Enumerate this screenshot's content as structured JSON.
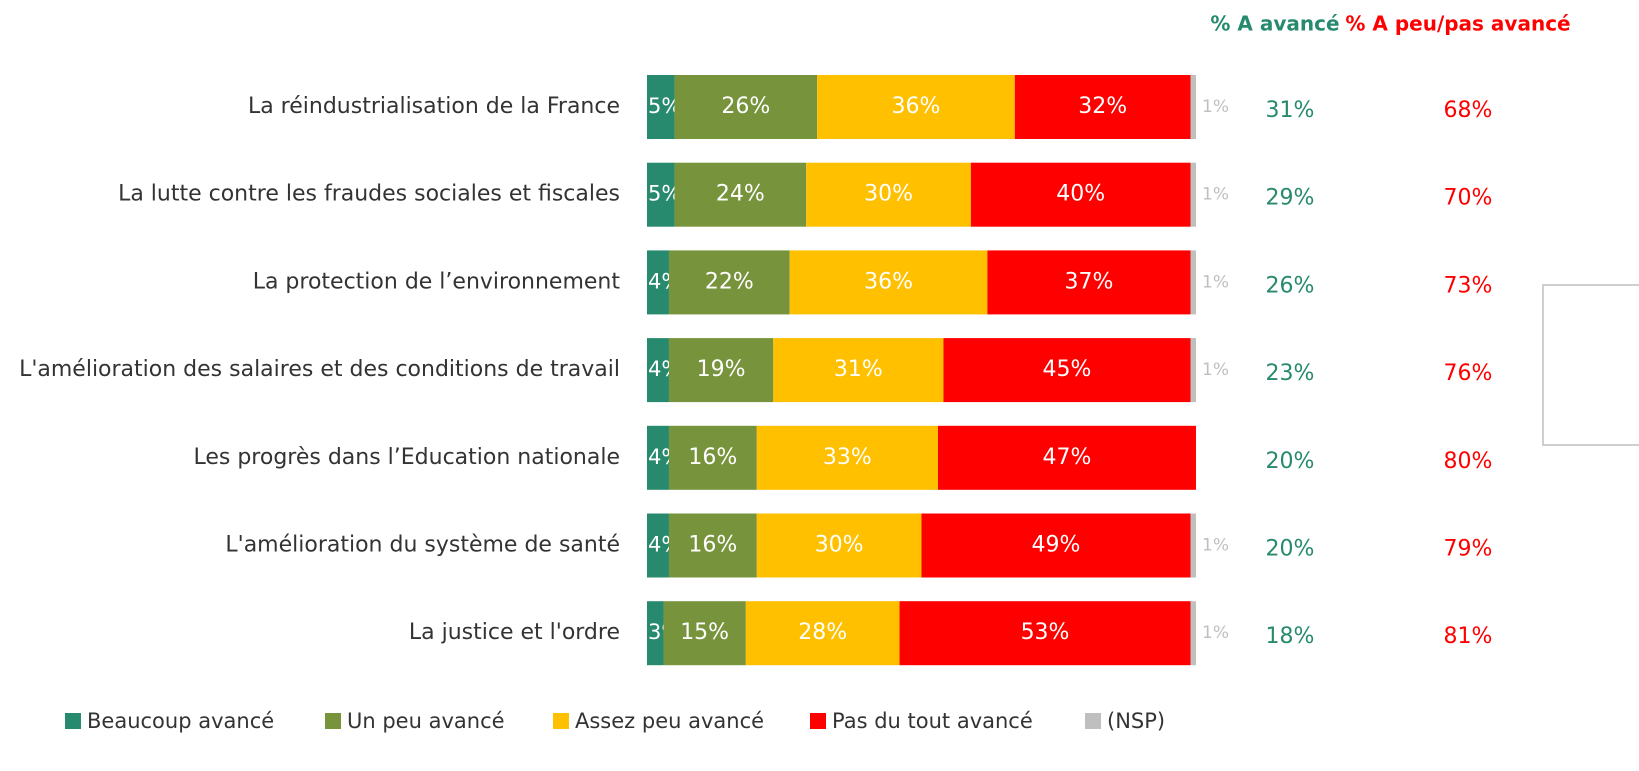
{
  "chart_data": {
    "type": "stacked-bar-horizontal",
    "categories": [
      "La réindustrialisation de la France",
      "La lutte contre les fraudes sociales et fiscales",
      "La protection de l’environnement",
      "L'amélioration des salaires et des conditions de travail",
      "Les progrès dans l’Education nationale",
      "L'amélioration du système de santé",
      "La justice et l'ordre"
    ],
    "xlim": [
      0,
      100
    ],
    "series": [
      {
        "name": "Beaucoup avancé",
        "color": "#278a6e",
        "label_color": "#ffffff",
        "values": [
          5,
          5,
          4,
          4,
          4,
          4,
          3
        ],
        "value_labels": [
          "5%",
          "5%",
          "4%",
          "4%",
          "4%",
          "4%",
          "3%"
        ]
      },
      {
        "name": "Un peu avancé",
        "color": "#77933c",
        "label_color": "#ffffff",
        "values": [
          26,
          24,
          22,
          19,
          16,
          16,
          15
        ],
        "value_labels": [
          "26%",
          "24%",
          "22%",
          "19%",
          "16%",
          "16%",
          "15%"
        ]
      },
      {
        "name": "Assez peu avancé",
        "color": "#ffc000",
        "label_color": "#ffffff",
        "values": [
          36,
          30,
          36,
          31,
          33,
          30,
          28
        ],
        "value_labels": [
          "36%",
          "30%",
          "36%",
          "31%",
          "33%",
          "30%",
          "28%"
        ]
      },
      {
        "name": "Pas du tout avancé",
        "color": "#ff0000",
        "label_color": "#ffffff",
        "values": [
          32,
          40,
          37,
          45,
          47,
          49,
          53
        ],
        "value_labels": [
          "32%",
          "40%",
          "37%",
          "45%",
          "47%",
          "49%",
          "53%"
        ]
      },
      {
        "name": "(NSP)",
        "color": "#bfbfbf",
        "label_color": "#bfbfbf",
        "values": [
          1,
          1,
          1,
          1,
          null,
          1,
          1
        ],
        "value_labels": [
          "1%",
          "1%",
          "1%",
          "1%",
          null,
          "1%",
          "1%"
        ]
      }
    ],
    "summary_columns": [
      {
        "name": "% A avancé",
        "color": "#278a6e",
        "values": [
          31,
          29,
          26,
          23,
          20,
          20,
          18
        ],
        "value_labels": [
          "31%",
          "29%",
          "26%",
          "23%",
          "20%",
          "20%",
          "18%"
        ]
      },
      {
        "name": "% A peu/pas avancé",
        "color": "#ff0000",
        "values": [
          68,
          70,
          73,
          76,
          80,
          79,
          81
        ],
        "value_labels": [
          "68%",
          "70%",
          "73%",
          "76%",
          "80%",
          "79%",
          "81%"
        ]
      }
    ]
  }
}
